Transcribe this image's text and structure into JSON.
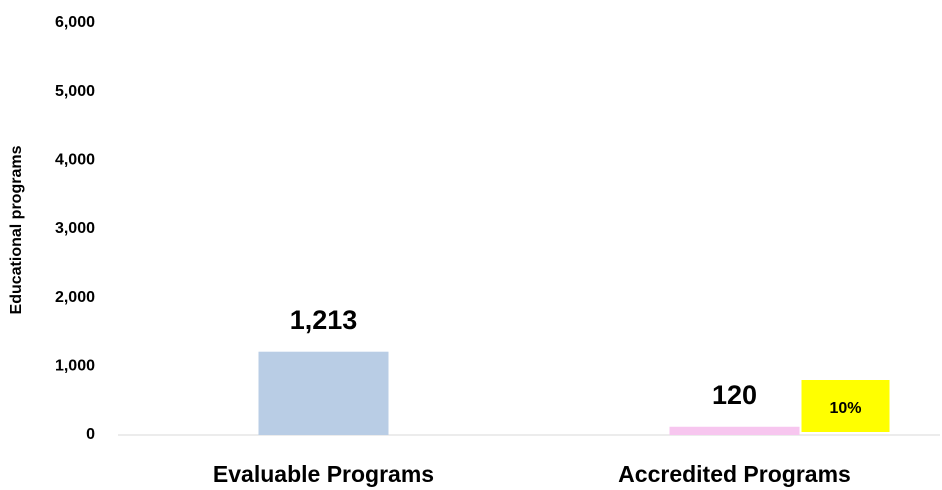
{
  "chart_data": {
    "type": "bar",
    "y_label": "Educational programs",
    "categories": [
      "Evaluable Programs",
      "Accredited Programs"
    ],
    "values": [
      1213,
      120
    ],
    "value_labels": [
      "1,213",
      "120"
    ],
    "colors": [
      "#b9cde5",
      "#f7c6ef"
    ],
    "annotation": "10%",
    "annotation_color": "#ffff00",
    "ylim": [
      0,
      6000
    ],
    "yticks": [
      0,
      {
        "value": 1000,
        "label": "1,000"
      },
      {
        "value": 2000,
        "label": "2,000"
      },
      {
        "value": 3000,
        "label": "3,000"
      },
      {
        "value": 4000,
        "label": "4,000"
      },
      {
        "value": 5000,
        "label": "5,000"
      },
      {
        "value": 6000,
        "label": "6,000"
      }
    ],
    "grid": false
  }
}
